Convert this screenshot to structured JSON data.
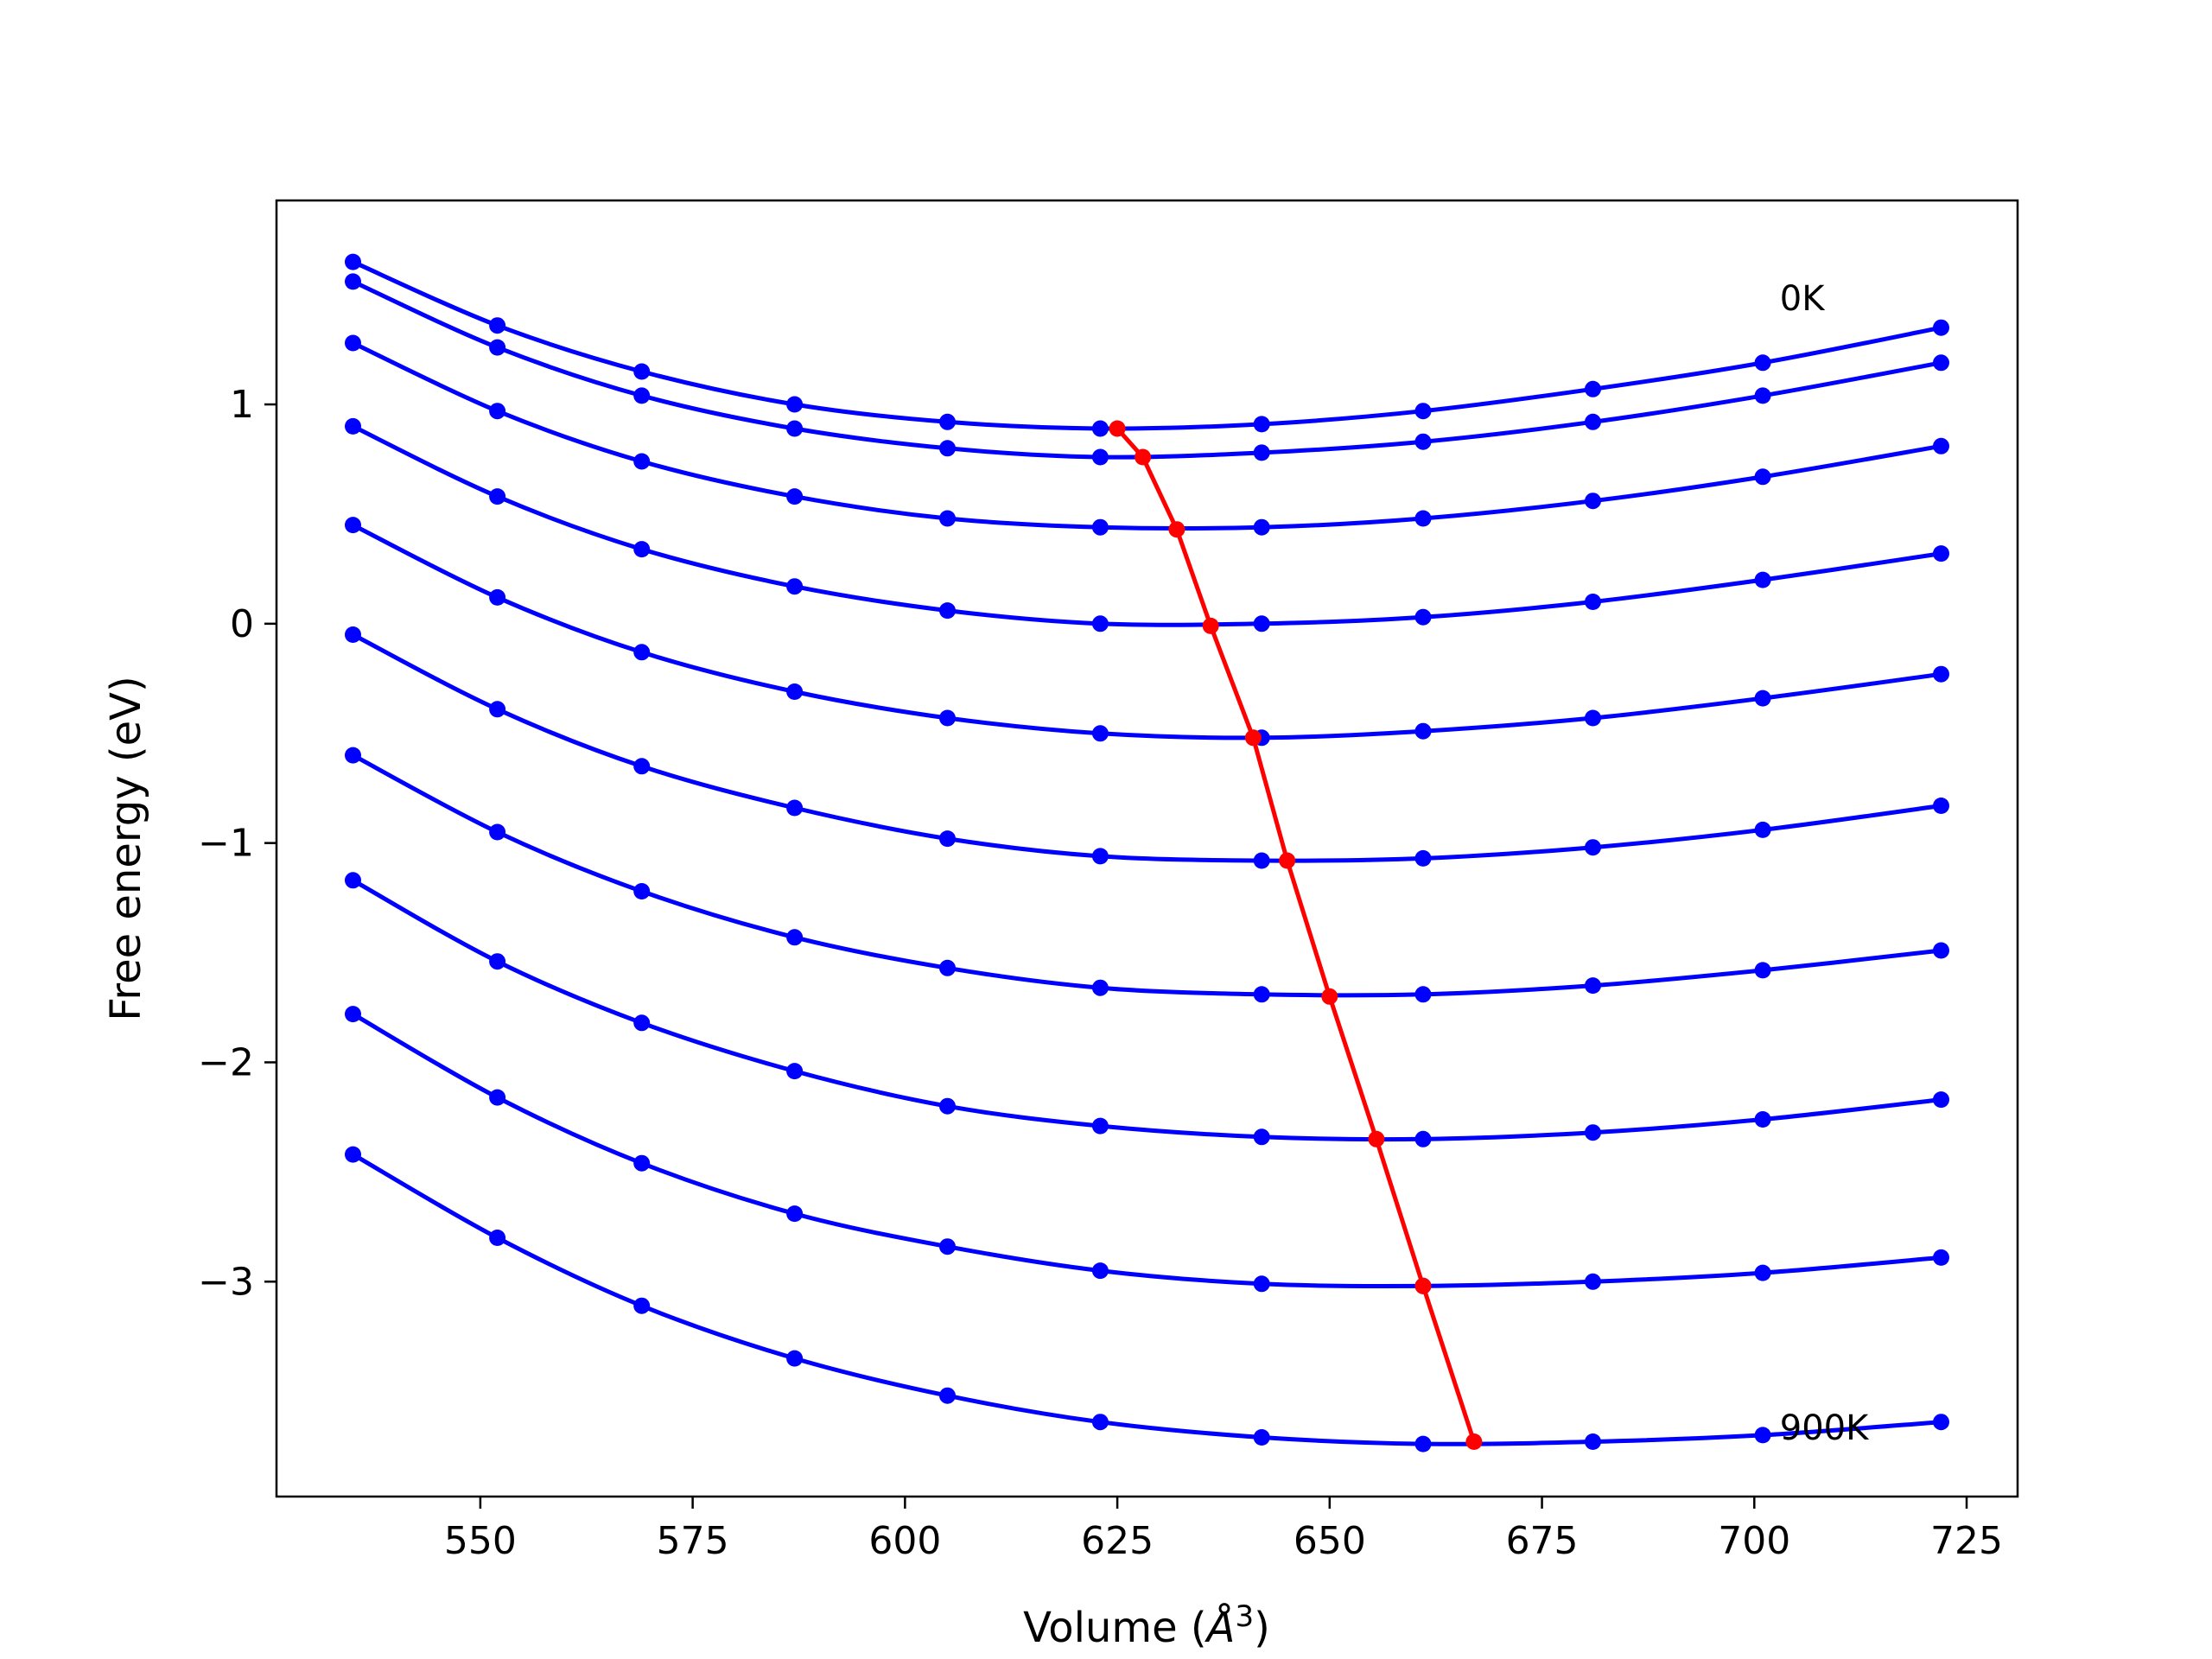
{
  "chart_data": {
    "type": "line",
    "xlabel": "Volume (",
    "xlabel_unit_base": "Å",
    "xlabel_unit_exp": "3",
    "xlabel_close": ")",
    "ylabel": "Free energy (eV)",
    "xlim": [
      526,
      731
    ],
    "ylim": [
      -3.98,
      1.93
    ],
    "x_ticks": [
      550,
      575,
      600,
      625,
      650,
      675,
      700,
      725
    ],
    "x_tick_labels": [
      "550",
      "575",
      "600",
      "625",
      "650",
      "675",
      "700",
      "725"
    ],
    "y_ticks": [
      1,
      0,
      -1,
      -2,
      -3
    ],
    "y_tick_labels": [
      "1",
      "0",
      "−1",
      "−2",
      "−3"
    ],
    "grid": false,
    "annotations": [
      {
        "text": "0K",
        "x": 703,
        "y": 1.43
      },
      {
        "text": "900K",
        "x": 703,
        "y": -3.72
      }
    ],
    "x": [
      535,
      552,
      569,
      587,
      605,
      623,
      642,
      661,
      681,
      701,
      722
    ],
    "series": [
      {
        "color": "#0000ff",
        "values": [
          1.65,
          1.36,
          1.15,
          1.0,
          0.92,
          0.89,
          0.91,
          0.97,
          1.07,
          1.19,
          1.35
        ]
      },
      {
        "color": "#0000ff",
        "values": [
          1.56,
          1.26,
          1.04,
          0.89,
          0.8,
          0.76,
          0.78,
          0.83,
          0.92,
          1.04,
          1.19
        ]
      },
      {
        "color": "#0000ff",
        "values": [
          1.28,
          0.97,
          0.74,
          0.58,
          0.48,
          0.44,
          0.44,
          0.48,
          0.56,
          0.67,
          0.81
        ]
      },
      {
        "color": "#0000ff",
        "values": [
          0.9,
          0.58,
          0.34,
          0.17,
          0.06,
          0.0,
          0.0,
          0.03,
          0.1,
          0.2,
          0.32
        ]
      },
      {
        "color": "#0000ff",
        "values": [
          0.45,
          0.12,
          -0.13,
          -0.31,
          -0.43,
          -0.5,
          -0.52,
          -0.49,
          -0.43,
          -0.34,
          -0.23
        ]
      },
      {
        "color": "#0000ff",
        "values": [
          -0.05,
          -0.39,
          -0.65,
          -0.84,
          -0.98,
          -1.06,
          -1.08,
          -1.07,
          -1.02,
          -0.94,
          -0.83
        ]
      },
      {
        "color": "#0000ff",
        "values": [
          -0.6,
          -0.95,
          -1.22,
          -1.43,
          -1.57,
          -1.66,
          -1.69,
          -1.69,
          -1.65,
          -1.58,
          -1.49
        ]
      },
      {
        "color": "#0000ff",
        "values": [
          -1.17,
          -1.54,
          -1.82,
          -2.04,
          -2.2,
          -2.29,
          -2.34,
          -2.35,
          -2.32,
          -2.26,
          -2.17
        ]
      },
      {
        "color": "#0000ff",
        "values": [
          -1.78,
          -2.16,
          -2.46,
          -2.69,
          -2.84,
          -2.95,
          -3.01,
          -3.02,
          -3.0,
          -2.96,
          -2.89
        ]
      },
      {
        "color": "#0000ff",
        "values": [
          -2.42,
          -2.8,
          -3.11,
          -3.35,
          -3.52,
          -3.64,
          -3.71,
          -3.74,
          -3.73,
          -3.7,
          -3.64
        ]
      }
    ],
    "minima": {
      "color": "#ff0000",
      "x": [
        625,
        628,
        632,
        636,
        641,
        645,
        650,
        655.5,
        661,
        667
      ],
      "y": [
        0.89,
        0.76,
        0.43,
        -0.01,
        -0.52,
        -1.08,
        -1.7,
        -2.35,
        -3.02,
        -3.73
      ]
    }
  }
}
